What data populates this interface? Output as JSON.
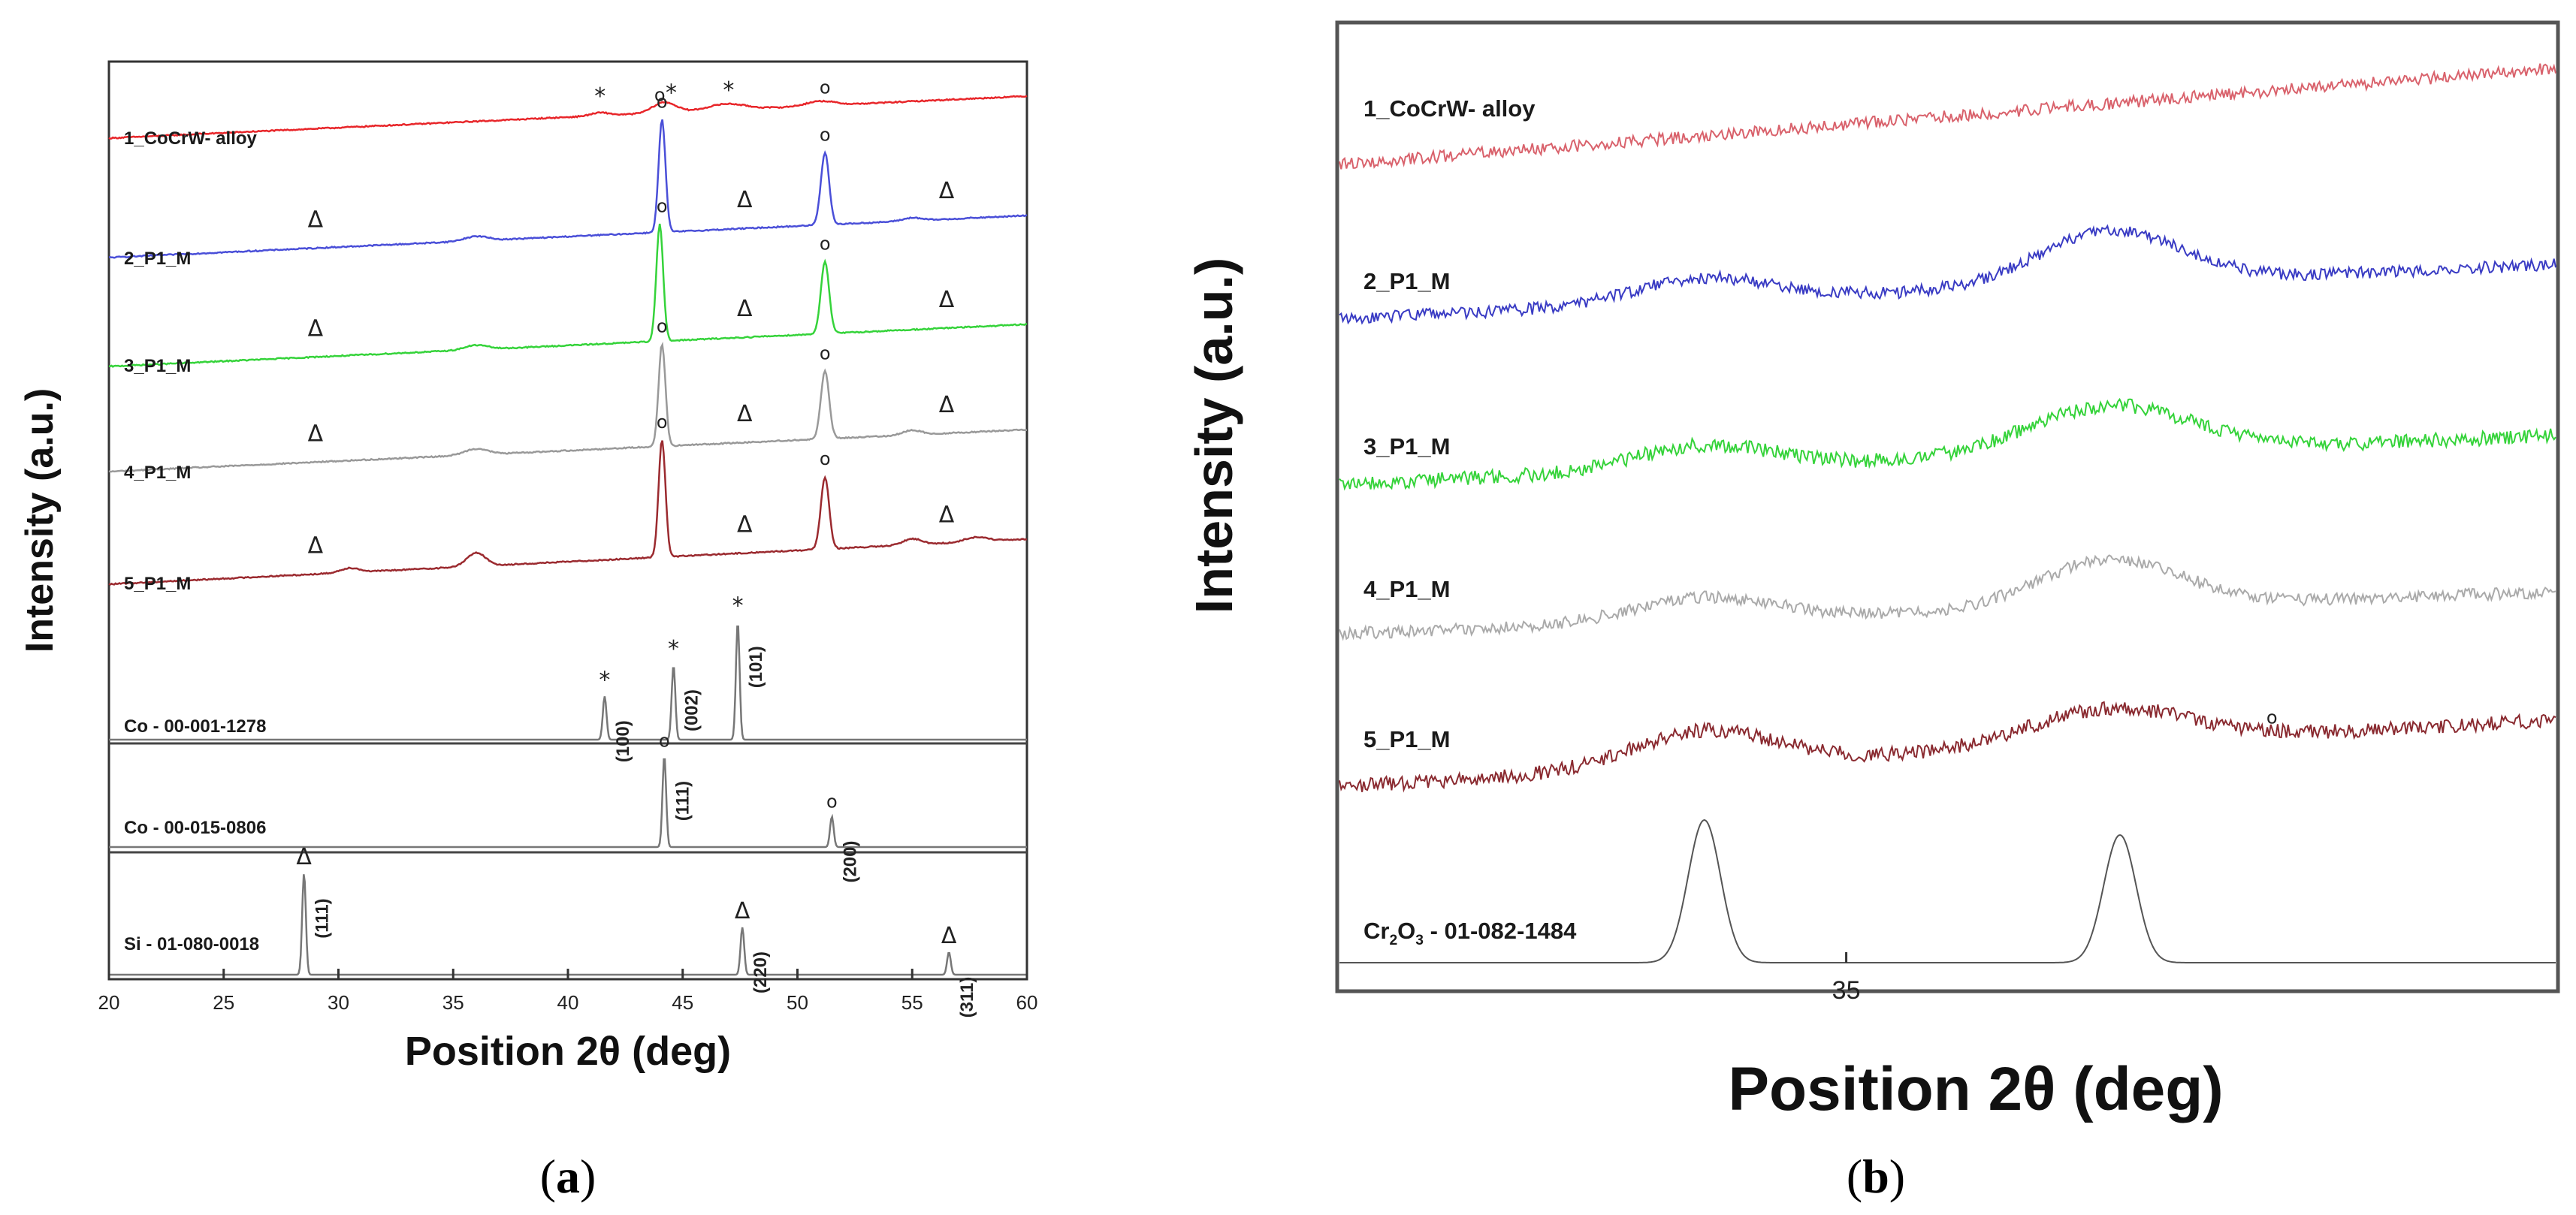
{
  "chart_data": [
    {
      "id": "a",
      "type": "line",
      "caption": "(a)",
      "caption_letter": "a",
      "xlabel": "Position 2θ (deg)",
      "ylabel": "Intensity (a.u.)",
      "xlim": [
        20,
        60
      ],
      "xticks": [
        "20",
        "25",
        "30",
        "35",
        "40",
        "45",
        "50",
        "55",
        "60"
      ],
      "series": [
        {
          "name": "1_CoCrW- alloy",
          "color": "#e8262a",
          "baseline": [
            0.08,
            0.36
          ],
          "noise": 0.004,
          "peaks": [
            [
              41.4,
              0.02,
              0.4
            ],
            [
              44.2,
              0.07,
              0.5
            ],
            [
              46.9,
              0.04,
              0.8
            ],
            [
              51.0,
              0.03,
              0.6
            ]
          ],
          "markers": [
            {
              "x": 41.4,
              "s": "*"
            },
            {
              "x": 44.0,
              "s": "o"
            },
            {
              "x": 44.5,
              "s": "*"
            },
            {
              "x": 47.0,
              "s": "*"
            },
            {
              "x": 51.2,
              "s": "o"
            }
          ]
        },
        {
          "name": "2_P1_M",
          "color": "#4a4fd8",
          "baseline": [
            0.06,
            0.34
          ],
          "noise": 0.004,
          "peaks": [
            [
              36.0,
              0.03,
              0.5
            ],
            [
              44.1,
              0.75,
              0.15
            ],
            [
              51.2,
              0.48,
              0.18
            ],
            [
              55.0,
              0.02,
              0.4
            ]
          ],
          "markers": [
            {
              "x": 29.0,
              "s": "Δ"
            },
            {
              "x": 44.1,
              "s": "o"
            },
            {
              "x": 47.7,
              "s": "Δ"
            },
            {
              "x": 51.2,
              "s": "o"
            },
            {
              "x": 56.5,
              "s": "Δ"
            }
          ]
        },
        {
          "name": "3_P1_M",
          "color": "#35d33a",
          "baseline": [
            0.06,
            0.34
          ],
          "noise": 0.004,
          "peaks": [
            [
              36.0,
              0.03,
              0.5
            ],
            [
              44.0,
              0.78,
              0.15
            ],
            [
              51.2,
              0.48,
              0.18
            ]
          ],
          "markers": [
            {
              "x": 29.0,
              "s": "Δ"
            },
            {
              "x": 44.1,
              "s": "o"
            },
            {
              "x": 47.7,
              "s": "Δ"
            },
            {
              "x": 51.2,
              "s": "o"
            },
            {
              "x": 56.5,
              "s": "Δ"
            }
          ]
        },
        {
          "name": "4_P1_M",
          "color": "#999999",
          "baseline": [
            0.06,
            0.34
          ],
          "noise": 0.004,
          "peaks": [
            [
              36.0,
              0.04,
              0.5
            ],
            [
              44.1,
              0.68,
              0.15
            ],
            [
              51.2,
              0.45,
              0.18
            ],
            [
              55.0,
              0.03,
              0.4
            ]
          ],
          "markers": [
            {
              "x": 29.0,
              "s": "Δ"
            },
            {
              "x": 44.1,
              "s": "o"
            },
            {
              "x": 47.7,
              "s": "Δ"
            },
            {
              "x": 51.2,
              "s": "o"
            },
            {
              "x": 56.5,
              "s": "Δ"
            }
          ]
        },
        {
          "name": "5_P1_M",
          "color": "#9b2a2f",
          "baseline": [
            0.06,
            0.36
          ],
          "noise": 0.004,
          "peaks": [
            [
              30.5,
              0.03,
              0.4
            ],
            [
              36.0,
              0.09,
              0.4
            ],
            [
              44.1,
              0.78,
              0.15
            ],
            [
              51.2,
              0.48,
              0.18
            ],
            [
              55.0,
              0.04,
              0.4
            ],
            [
              57.8,
              0.03,
              0.5
            ]
          ],
          "markers": [
            {
              "x": 29.0,
              "s": "Δ"
            },
            {
              "x": 44.1,
              "s": "o"
            },
            {
              "x": 47.7,
              "s": "Δ"
            },
            {
              "x": 51.2,
              "s": "o"
            },
            {
              "x": 56.5,
              "s": "Δ"
            }
          ]
        }
      ],
      "references": [
        {
          "name": "Co - 00-001-1278",
          "color": "#777777",
          "peaks": [
            {
              "x": 41.6,
              "h": 0.35,
              "hkl": "(100)",
              "s": "*"
            },
            {
              "x": 44.6,
              "h": 0.6,
              "hkl": "(002)",
              "s": "*"
            },
            {
              "x": 47.4,
              "h": 0.95,
              "hkl": "(101)",
              "s": "*"
            }
          ]
        },
        {
          "name": "Co - 00-015-0806",
          "color": "#777777",
          "peaks": [
            {
              "x": 44.2,
              "h": 0.9,
              "hkl": "(111)",
              "s": "o"
            },
            {
              "x": 51.5,
              "h": 0.3,
              "hkl": "(200)",
              "s": "o"
            }
          ]
        },
        {
          "name": "Si - 01-080-0018",
          "color": "#777777",
          "peaks": [
            {
              "x": 28.5,
              "h": 0.9,
              "hkl": "(111)",
              "s": "Δ"
            },
            {
              "x": 47.6,
              "h": 0.42,
              "hkl": "(220)",
              "s": "Δ"
            },
            {
              "x": 56.6,
              "h": 0.2,
              "hkl": "(311)",
              "s": "Δ"
            }
          ]
        }
      ]
    },
    {
      "id": "b",
      "type": "line",
      "caption": "(b)",
      "caption_letter": "b",
      "xlabel": "Position 2θ (deg)",
      "ylabel": "Intensity (a.u.)",
      "xlim": [
        32.5,
        38.5
      ],
      "xticks": [
        "35"
      ],
      "series": [
        {
          "name": "1_CoCrW- alloy",
          "color": "#d9626c",
          "baseline": [
            0.1,
            0.9
          ],
          "noise": 0.05,
          "peaks": []
        },
        {
          "name": "2_P1_M",
          "color": "#3a3cc4",
          "baseline": [
            0.1,
            0.55
          ],
          "noise": 0.05,
          "peaks": [
            [
              34.3,
              0.2,
              0.35
            ],
            [
              36.3,
              0.45,
              0.35
            ]
          ]
        },
        {
          "name": "3_P1_M",
          "color": "#35d33a",
          "baseline": [
            0.1,
            0.5
          ],
          "noise": 0.06,
          "peaks": [
            [
              34.3,
              0.2,
              0.35
            ],
            [
              36.3,
              0.4,
              0.4
            ]
          ]
        },
        {
          "name": "4_P1_M",
          "color": "#aaaaaa",
          "baseline": [
            0.1,
            0.45
          ],
          "noise": 0.05,
          "peaks": [
            [
              34.3,
              0.2,
              0.35
            ],
            [
              36.3,
              0.4,
              0.35
            ]
          ]
        },
        {
          "name": "5_P1_M",
          "color": "#8a2a30",
          "baseline": [
            0.05,
            0.6
          ],
          "noise": 0.06,
          "peaks": [
            [
              34.3,
              0.3,
              0.35
            ],
            [
              36.3,
              0.3,
              0.4
            ]
          ],
          "markers": [
            {
              "x": 37.1,
              "s": "o"
            }
          ]
        }
      ],
      "references": [
        {
          "name": "Cr2O3 - 01-082-1484",
          "name_pre": "Cr",
          "name_sub1": "2",
          "name_mid": "O",
          "name_sub2": "3",
          "name_post": " - 01-082-1484",
          "color": "#555555",
          "peaks": [
            {
              "x": 34.3,
              "h": 0.95,
              "w": 0.08
            },
            {
              "x": 36.35,
              "h": 0.85,
              "w": 0.08
            }
          ]
        }
      ]
    }
  ]
}
